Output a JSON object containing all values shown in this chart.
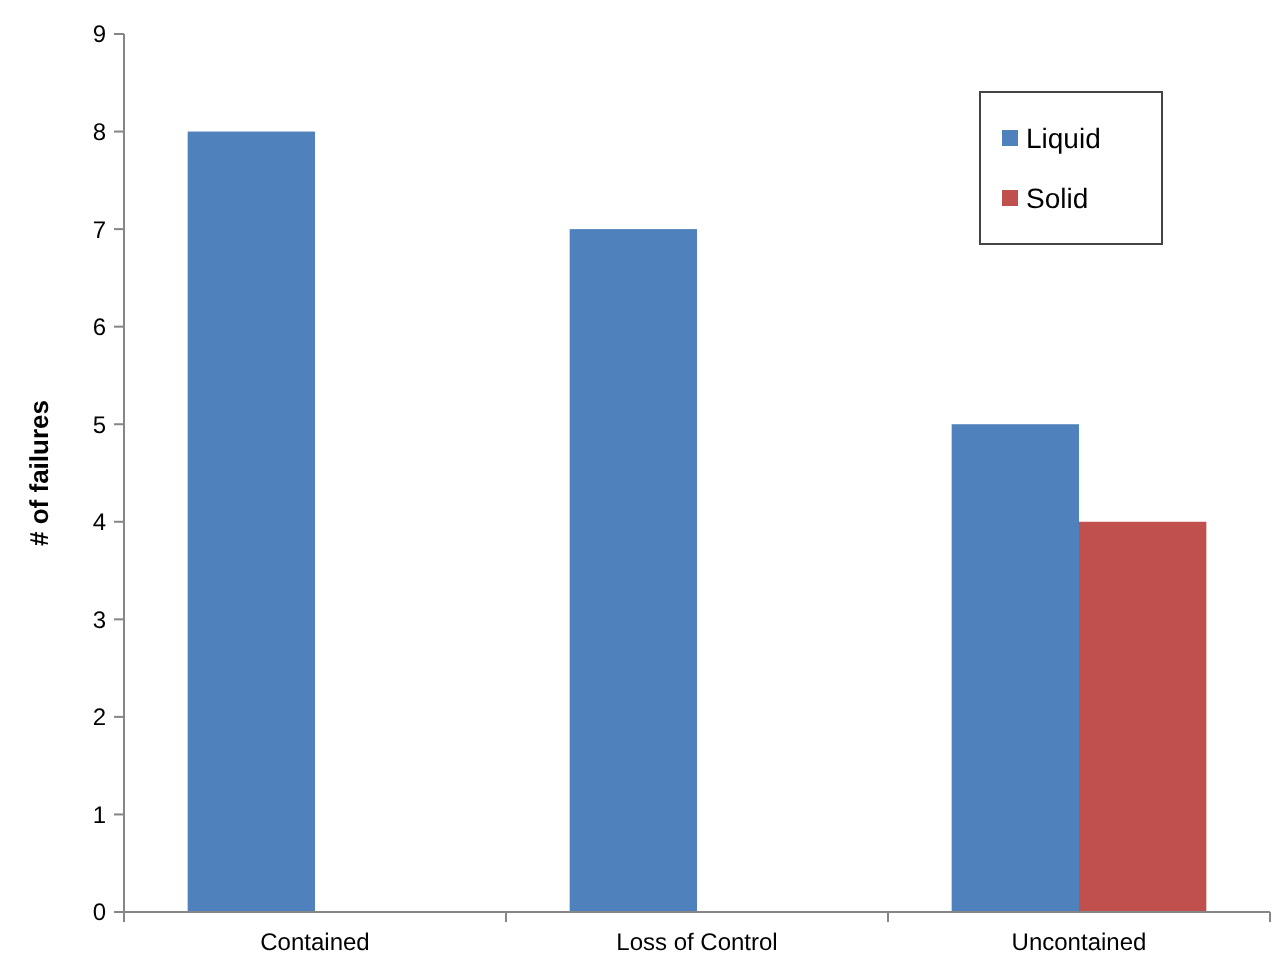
{
  "chart_data": {
    "type": "bar",
    "ylabel": "# of failures",
    "categories": [
      "Contained",
      "Loss of Control",
      "Uncontained"
    ],
    "series": [
      {
        "name": "Liquid",
        "color": "#4f81bd",
        "values": [
          8,
          7,
          5
        ]
      },
      {
        "name": "Solid",
        "color": "#c0504d",
        "values": [
          null,
          null,
          4
        ]
      }
    ],
    "ylim": [
      0,
      9
    ],
    "yticks": [
      0,
      1,
      2,
      3,
      4,
      5,
      6,
      7,
      8,
      9
    ],
    "grid": false,
    "legend": "top right"
  }
}
